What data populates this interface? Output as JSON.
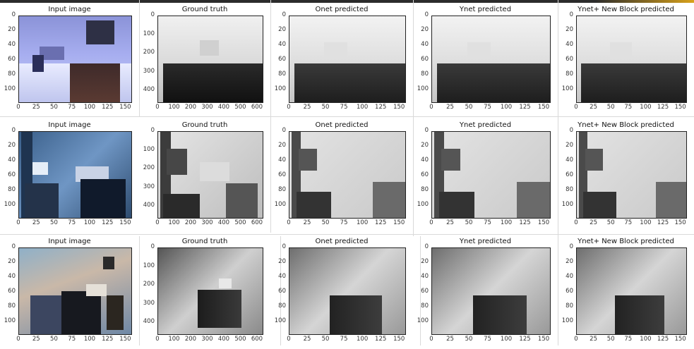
{
  "accent_color": "#d9a21a",
  "rows": [
    {
      "panels": [
        {
          "title": "Input image",
          "kind": "input1",
          "yticks": [
            "0",
            "20",
            "40",
            "60",
            "80",
            "100"
          ],
          "xticks": [
            "0",
            "25",
            "50",
            "75",
            "100",
            "125",
            "150"
          ]
        },
        {
          "title": "Ground truth",
          "kind": "gt1",
          "yticks": [
            "0",
            "100",
            "200",
            "300",
            "400"
          ],
          "xticks": [
            "0",
            "100",
            "200",
            "300",
            "400",
            "500",
            "600"
          ]
        },
        {
          "title": "Onet predicted",
          "kind": "pred1",
          "yticks": [
            "0",
            "20",
            "40",
            "60",
            "80",
            "100"
          ],
          "xticks": [
            "0",
            "25",
            "50",
            "75",
            "100",
            "125",
            "150"
          ]
        },
        {
          "title": "Ynet predicted",
          "kind": "pred1",
          "yticks": [
            "0",
            "20",
            "40",
            "60",
            "80",
            "100"
          ],
          "xticks": [
            "0",
            "25",
            "50",
            "75",
            "100",
            "125",
            "150"
          ]
        },
        {
          "title": "Ynet+ New Block predicted",
          "kind": "pred1",
          "yticks": [
            "0",
            "20",
            "40",
            "60",
            "80",
            "100"
          ],
          "xticks": [
            "0",
            "25",
            "50",
            "75",
            "100",
            "125",
            "150"
          ]
        }
      ]
    },
    {
      "panels": [
        {
          "title": "Input image",
          "kind": "input2",
          "yticks": [
            "0",
            "20",
            "40",
            "60",
            "80",
            "100"
          ],
          "xticks": [
            "0",
            "25",
            "50",
            "75",
            "100",
            "125",
            "150"
          ]
        },
        {
          "title": "Ground truth",
          "kind": "gt2",
          "yticks": [
            "0",
            "100",
            "200",
            "300",
            "400"
          ],
          "xticks": [
            "0",
            "100",
            "200",
            "300",
            "400",
            "500",
            "600"
          ]
        },
        {
          "title": "Onet predicted",
          "kind": "pred2",
          "yticks": [
            "0",
            "20",
            "40",
            "60",
            "80",
            "100"
          ],
          "xticks": [
            "0",
            "25",
            "50",
            "75",
            "100",
            "125",
            "150"
          ]
        },
        {
          "title": "Ynet predicted",
          "kind": "pred2",
          "yticks": [
            "0",
            "20",
            "40",
            "60",
            "80",
            "100"
          ],
          "xticks": [
            "0",
            "25",
            "50",
            "75",
            "100",
            "125",
            "150"
          ]
        },
        {
          "title": "Ynet+ New Block predicted",
          "kind": "pred2",
          "yticks": [
            "0",
            "20",
            "40",
            "60",
            "80",
            "100"
          ],
          "xticks": [
            "0",
            "25",
            "50",
            "75",
            "100",
            "125",
            "150"
          ]
        }
      ]
    },
    {
      "panels": [
        {
          "title": "Input image",
          "kind": "input3",
          "yticks": [
            "0",
            "20",
            "40",
            "60",
            "80",
            "100"
          ],
          "xticks": [
            "0",
            "25",
            "50",
            "75",
            "100",
            "125",
            "150"
          ]
        },
        {
          "title": "Ground truth",
          "kind": "gt3",
          "yticks": [
            "0",
            "100",
            "200",
            "300",
            "400"
          ],
          "xticks": [
            "0",
            "100",
            "200",
            "300",
            "400",
            "500",
            "600"
          ]
        },
        {
          "title": "Onet predicted",
          "kind": "pred3",
          "yticks": [
            "0",
            "20",
            "40",
            "60",
            "80",
            "100"
          ],
          "xticks": [
            "0",
            "25",
            "50",
            "75",
            "100",
            "125",
            "150"
          ]
        },
        {
          "title": "Ynet predicted",
          "kind": "pred3",
          "yticks": [
            "0",
            "20",
            "40",
            "60",
            "80",
            "100"
          ],
          "xticks": [
            "0",
            "25",
            "50",
            "75",
            "100",
            "125",
            "150"
          ]
        },
        {
          "title": "Ynet+ New Block predicted",
          "kind": "pred3",
          "yticks": [
            "0",
            "20",
            "40",
            "60",
            "80",
            "100"
          ],
          "xticks": [
            "0",
            "25",
            "50",
            "75",
            "100",
            "125",
            "150"
          ]
        }
      ]
    }
  ]
}
